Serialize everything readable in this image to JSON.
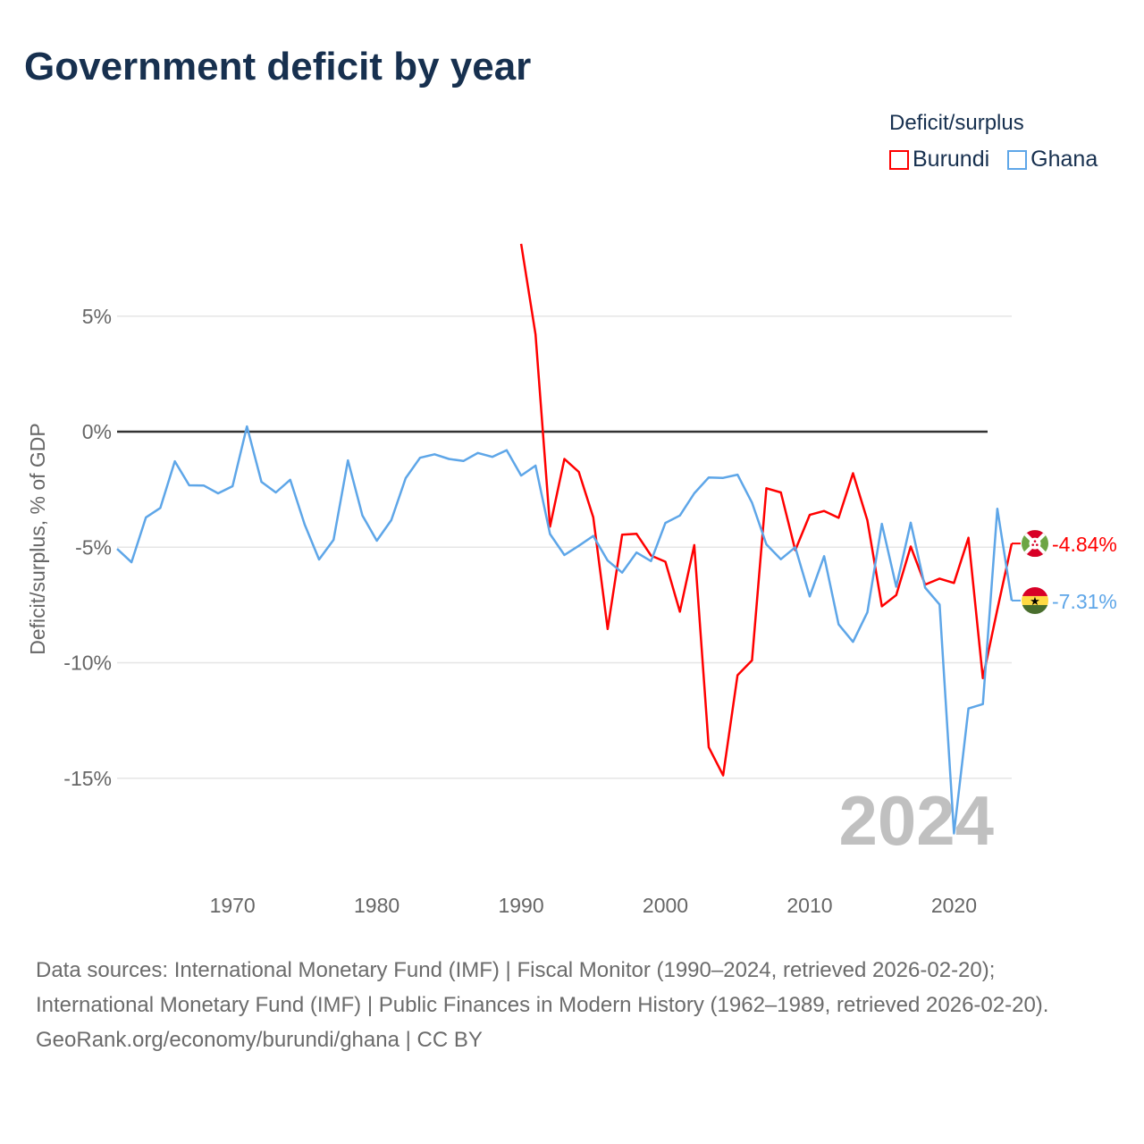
{
  "title": "Government deficit by year",
  "legend": {
    "title": "Deficit/surplus",
    "items": [
      {
        "name": "Burundi",
        "color": "#ff0000"
      },
      {
        "name": "Ghana",
        "color": "#5ea6e8"
      }
    ]
  },
  "chart_data": {
    "type": "line",
    "title": "Government deficit by year",
    "ylabel": "Deficit/surplus, % of GDP",
    "xlabel": "",
    "xlim": [
      1962,
      2024
    ],
    "ylim": [
      -18,
      9
    ],
    "x_ticks": [
      1970,
      1980,
      1990,
      2000,
      2010,
      2020
    ],
    "y_ticks": [
      {
        "v": 5,
        "label": "5%"
      },
      {
        "v": 0,
        "label": "0%"
      },
      {
        "v": -5,
        "label": "-5%"
      },
      {
        "v": -10,
        "label": "-10%"
      },
      {
        "v": -15,
        "label": "-15%"
      }
    ],
    "grid": true,
    "year_label": "2024",
    "series": [
      {
        "name": "Burundi",
        "color": "#ff0000",
        "start_year": 1990,
        "end_label": "-4.84%",
        "values": [
          8.13,
          4.21,
          -4.11,
          -1.18,
          -1.74,
          -3.71,
          -8.54,
          -4.46,
          -4.42,
          -5.36,
          -5.63,
          -7.79,
          -4.91,
          -13.66,
          -14.88,
          -10.54,
          -9.9,
          -2.45,
          -2.63,
          -5.13,
          -3.6,
          -3.43,
          -3.73,
          -1.8,
          -3.84,
          -7.56,
          -7.07,
          -4.97,
          -6.62,
          -6.36,
          -6.55,
          -4.59,
          -10.67,
          -7.7,
          -4.84
        ]
      },
      {
        "name": "Ghana",
        "color": "#5ea6e8",
        "start_year": 1962,
        "end_label": "-7.31%",
        "values": [
          -5.07,
          -5.65,
          -3.71,
          -3.3,
          -1.28,
          -2.32,
          -2.33,
          -2.67,
          -2.36,
          0.23,
          -2.17,
          -2.63,
          -2.08,
          -4.02,
          -5.53,
          -4.68,
          -1.24,
          -3.63,
          -4.72,
          -3.83,
          -2.01,
          -1.13,
          -0.98,
          -1.18,
          -1.27,
          -0.92,
          -1.09,
          -0.8,
          -1.9,
          -1.47,
          -4.43,
          -5.34,
          -4.94,
          -4.51,
          -5.58,
          -6.1,
          -5.23,
          -5.6,
          -3.95,
          -3.63,
          -2.67,
          -1.98,
          -2.0,
          -1.86,
          -3.07,
          -4.88,
          -5.52,
          -5.0,
          -7.13,
          -5.39,
          -8.34,
          -9.1,
          -7.82,
          -3.99,
          -6.71,
          -3.94,
          -6.75,
          -7.48,
          -17.39,
          -11.98,
          -11.79,
          -3.34,
          -7.31
        ]
      }
    ]
  },
  "footer": {
    "sources": "Data sources: International Monetary Fund (IMF) | Fiscal Monitor (1990–2024, retrieved 2026-02-20); International Monetary Fund (IMF) | Public Finances in Modern History (1962–1989, retrieved 2026-02-20).",
    "credit": "GeoRank.org/economy/burundi/ghana | CC BY"
  }
}
